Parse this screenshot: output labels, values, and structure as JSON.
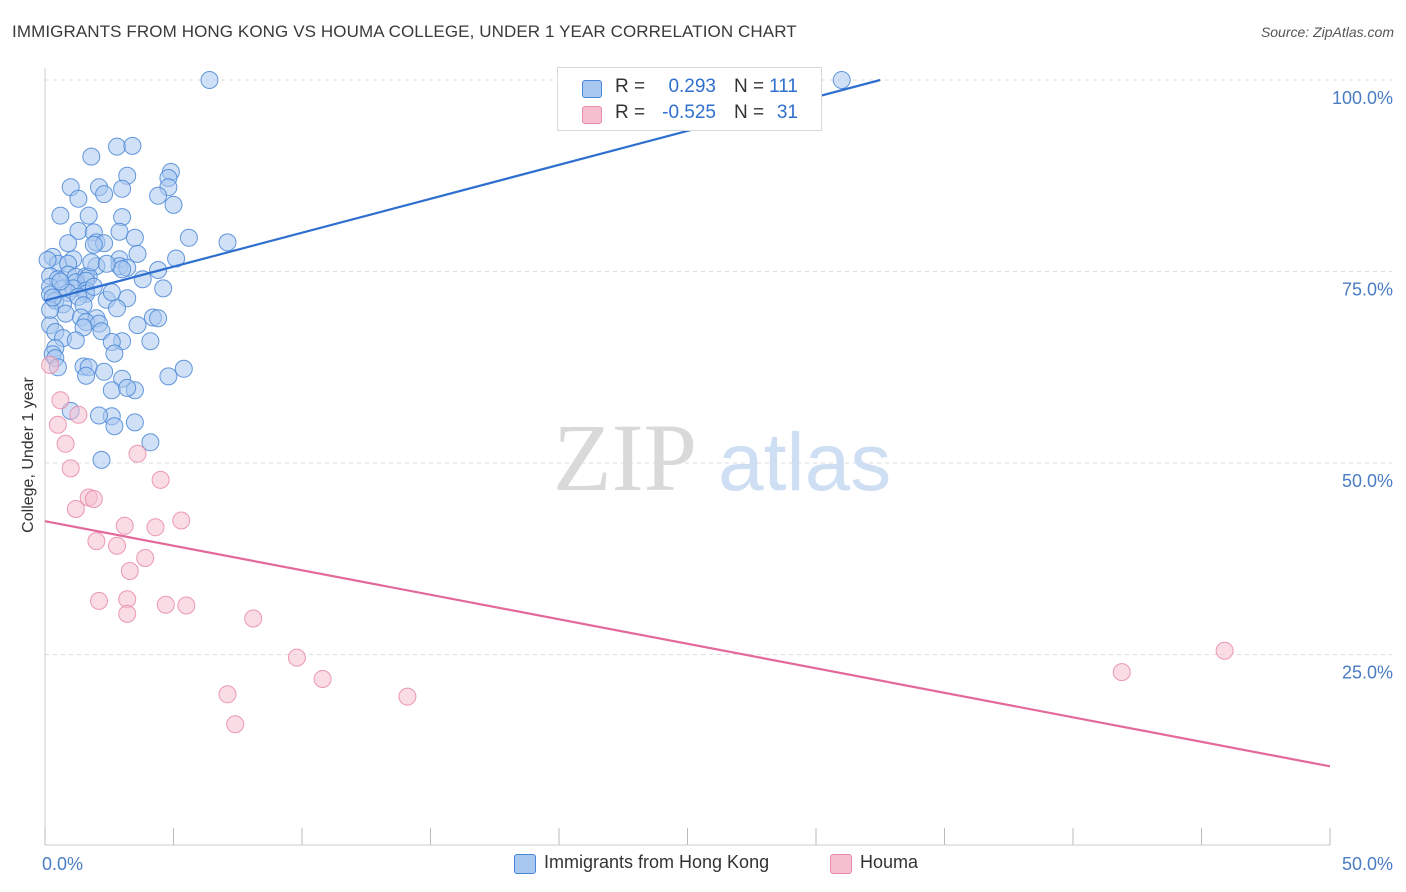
{
  "title": "IMMIGRANTS FROM HONG KONG VS HOUMA COLLEGE, UNDER 1 YEAR CORRELATION CHART",
  "source": "Source: ZipAtlas.com",
  "watermark": {
    "zip": "ZIP",
    "atlas": "atlas"
  },
  "colors": {
    "blue_fill": "#a9c8f0",
    "blue_stroke": "#4a86d6",
    "blue_line": "#2f6fcf",
    "pink_fill": "#f5bfd0",
    "pink_stroke": "#e88aa8",
    "pink_line": "#e2699a",
    "grid": "#dddddd",
    "tick_text": "#4a7cc4"
  },
  "legend": {
    "rows": [
      {
        "r_label": "R =",
        "r_value": "0.293",
        "n_label": "N =",
        "n_value": "111",
        "color": "blue"
      },
      {
        "r_label": "R =",
        "r_value": "-0.525",
        "n_label": "N =",
        "n_value": "31",
        "color": "pink"
      }
    ]
  },
  "bottom_legend": {
    "items": [
      {
        "label": "Immigrants from Hong Kong",
        "color": "blue"
      },
      {
        "label": "Houma",
        "color": "pink"
      }
    ]
  },
  "chart_data": {
    "type": "scatter",
    "title": "IMMIGRANTS FROM HONG KONG VS HOUMA COLLEGE, UNDER 1 YEAR CORRELATION CHART",
    "xlabel": "",
    "ylabel": "College, Under 1 year",
    "xlim": [
      0,
      50
    ],
    "ylim": [
      0,
      100
    ],
    "x_tick_labels": [
      {
        "value": 0,
        "label": "0.0%"
      },
      {
        "value": 50,
        "label": "50.0%"
      }
    ],
    "x_minor_ticks": [
      0,
      5,
      10,
      15,
      20,
      25,
      30,
      35,
      40,
      45,
      50
    ],
    "y_tick_labels": [
      {
        "value": 25,
        "label": "25.0%"
      },
      {
        "value": 50,
        "label": "50.0%"
      },
      {
        "value": 75,
        "label": "75.0%"
      },
      {
        "value": 100,
        "label": "100.0%"
      }
    ],
    "grid": true,
    "series": [
      {
        "name": "Immigrants from Hong Kong",
        "color": "blue",
        "R": 0.293,
        "N": 111,
        "trend": {
          "x": [
            0,
            32.5
          ],
          "y": [
            71.2,
            100
          ]
        },
        "points": [
          [
            6.4,
            100
          ],
          [
            31.0,
            100
          ],
          [
            2.8,
            91.3
          ],
          [
            3.4,
            91.4
          ],
          [
            1.8,
            90
          ],
          [
            4.9,
            88
          ],
          [
            3.2,
            87.5
          ],
          [
            4.8,
            87.2
          ],
          [
            2.1,
            86
          ],
          [
            3.0,
            85.8
          ],
          [
            1.0,
            86
          ],
          [
            4.8,
            86
          ],
          [
            1.3,
            84.5
          ],
          [
            2.3,
            85.1
          ],
          [
            4.4,
            84.9
          ],
          [
            5.0,
            83.7
          ],
          [
            0.6,
            82.3
          ],
          [
            1.7,
            82.3
          ],
          [
            3.0,
            82.1
          ],
          [
            1.3,
            80.3
          ],
          [
            1.9,
            80.1
          ],
          [
            2.9,
            80.2
          ],
          [
            3.5,
            79.4
          ],
          [
            5.6,
            79.4
          ],
          [
            2.0,
            78.8
          ],
          [
            2.3,
            78.7
          ],
          [
            7.1,
            78.8
          ],
          [
            1.9,
            78.5
          ],
          [
            3.6,
            77.3
          ],
          [
            0.3,
            76.9
          ],
          [
            1.1,
            76.6
          ],
          [
            5.1,
            76.7
          ],
          [
            0.5,
            76.0
          ],
          [
            2.9,
            76.6
          ],
          [
            0.9,
            76.0
          ],
          [
            2.0,
            75.7
          ],
          [
            2.9,
            75.7
          ],
          [
            3.2,
            75.5
          ],
          [
            3.0,
            75.3
          ],
          [
            0.2,
            74.4
          ],
          [
            0.9,
            74.6
          ],
          [
            1.2,
            74.3
          ],
          [
            1.6,
            74.4
          ],
          [
            4.4,
            75.2
          ],
          [
            0.5,
            74.0
          ],
          [
            1.7,
            74.3
          ],
          [
            1.2,
            73.6
          ],
          [
            1.6,
            73.8
          ],
          [
            3.8,
            74.0
          ],
          [
            0.2,
            73.0
          ],
          [
            0.7,
            72.8
          ],
          [
            1.1,
            72.8
          ],
          [
            1.6,
            72.5
          ],
          [
            4.6,
            72.8
          ],
          [
            0.2,
            72.0
          ],
          [
            0.9,
            72.2
          ],
          [
            1.6,
            72.1
          ],
          [
            1.3,
            71.7
          ],
          [
            0.4,
            71.2
          ],
          [
            2.4,
            71.3
          ],
          [
            3.2,
            71.5
          ],
          [
            0.7,
            70.7
          ],
          [
            1.5,
            70.6
          ],
          [
            2.8,
            70.2
          ],
          [
            0.8,
            69.5
          ],
          [
            1.4,
            69.0
          ],
          [
            2.0,
            68.9
          ],
          [
            4.2,
            69.0
          ],
          [
            4.4,
            68.9
          ],
          [
            0.2,
            68.0
          ],
          [
            1.6,
            68.4
          ],
          [
            2.1,
            68.2
          ],
          [
            1.5,
            67.7
          ],
          [
            2.2,
            67.2
          ],
          [
            0.4,
            67.1
          ],
          [
            0.7,
            66.3
          ],
          [
            3.0,
            65.9
          ],
          [
            4.1,
            65.9
          ],
          [
            2.6,
            65.8
          ],
          [
            0.4,
            65.0
          ],
          [
            1.2,
            66.0
          ],
          [
            0.3,
            64.2
          ],
          [
            2.7,
            64.3
          ],
          [
            0.4,
            63.7
          ],
          [
            1.5,
            62.6
          ],
          [
            1.7,
            62.5
          ],
          [
            0.5,
            62.5
          ],
          [
            5.4,
            62.3
          ],
          [
            2.3,
            61.9
          ],
          [
            1.6,
            61.4
          ],
          [
            4.8,
            61.3
          ],
          [
            3.0,
            61.0
          ],
          [
            3.5,
            59.5
          ],
          [
            2.6,
            59.5
          ],
          [
            3.2,
            59.8
          ],
          [
            1.0,
            56.8
          ],
          [
            2.6,
            56.1
          ],
          [
            2.1,
            56.2
          ],
          [
            3.5,
            55.3
          ],
          [
            2.7,
            54.8
          ],
          [
            4.1,
            52.7
          ],
          [
            2.2,
            50.4
          ],
          [
            0.1,
            76.5
          ],
          [
            0.2,
            70.0
          ],
          [
            0.3,
            71.6
          ],
          [
            0.6,
            73.7
          ],
          [
            1.8,
            76.2
          ],
          [
            2.4,
            76.0
          ],
          [
            0.9,
            78.7
          ],
          [
            1.9,
            73.0
          ],
          [
            2.6,
            72.3
          ],
          [
            3.6,
            68.0
          ]
        ]
      },
      {
        "name": "Houma",
        "color": "pink",
        "R": -0.525,
        "N": 31,
        "trend": {
          "x": [
            0,
            50
          ],
          "y": [
            42.4,
            10.4
          ]
        },
        "points": [
          [
            0.2,
            62.8
          ],
          [
            0.6,
            58.2
          ],
          [
            1.3,
            56.3
          ],
          [
            0.5,
            55.0
          ],
          [
            0.8,
            52.5
          ],
          [
            3.6,
            51.2
          ],
          [
            1.0,
            49.3
          ],
          [
            4.5,
            47.8
          ],
          [
            1.7,
            45.5
          ],
          [
            1.9,
            45.3
          ],
          [
            1.2,
            44.0
          ],
          [
            3.1,
            41.8
          ],
          [
            4.3,
            41.6
          ],
          [
            5.3,
            42.5
          ],
          [
            2.0,
            39.8
          ],
          [
            2.8,
            39.2
          ],
          [
            3.9,
            37.6
          ],
          [
            3.3,
            35.9
          ],
          [
            3.2,
            32.2
          ],
          [
            2.1,
            32.0
          ],
          [
            4.7,
            31.5
          ],
          [
            5.5,
            31.4
          ],
          [
            3.2,
            30.3
          ],
          [
            8.1,
            29.7
          ],
          [
            9.8,
            24.6
          ],
          [
            10.8,
            21.8
          ],
          [
            7.1,
            19.8
          ],
          [
            14.1,
            19.5
          ],
          [
            7.4,
            15.9
          ],
          [
            41.9,
            22.7
          ],
          [
            45.9,
            25.5
          ]
        ]
      }
    ]
  }
}
